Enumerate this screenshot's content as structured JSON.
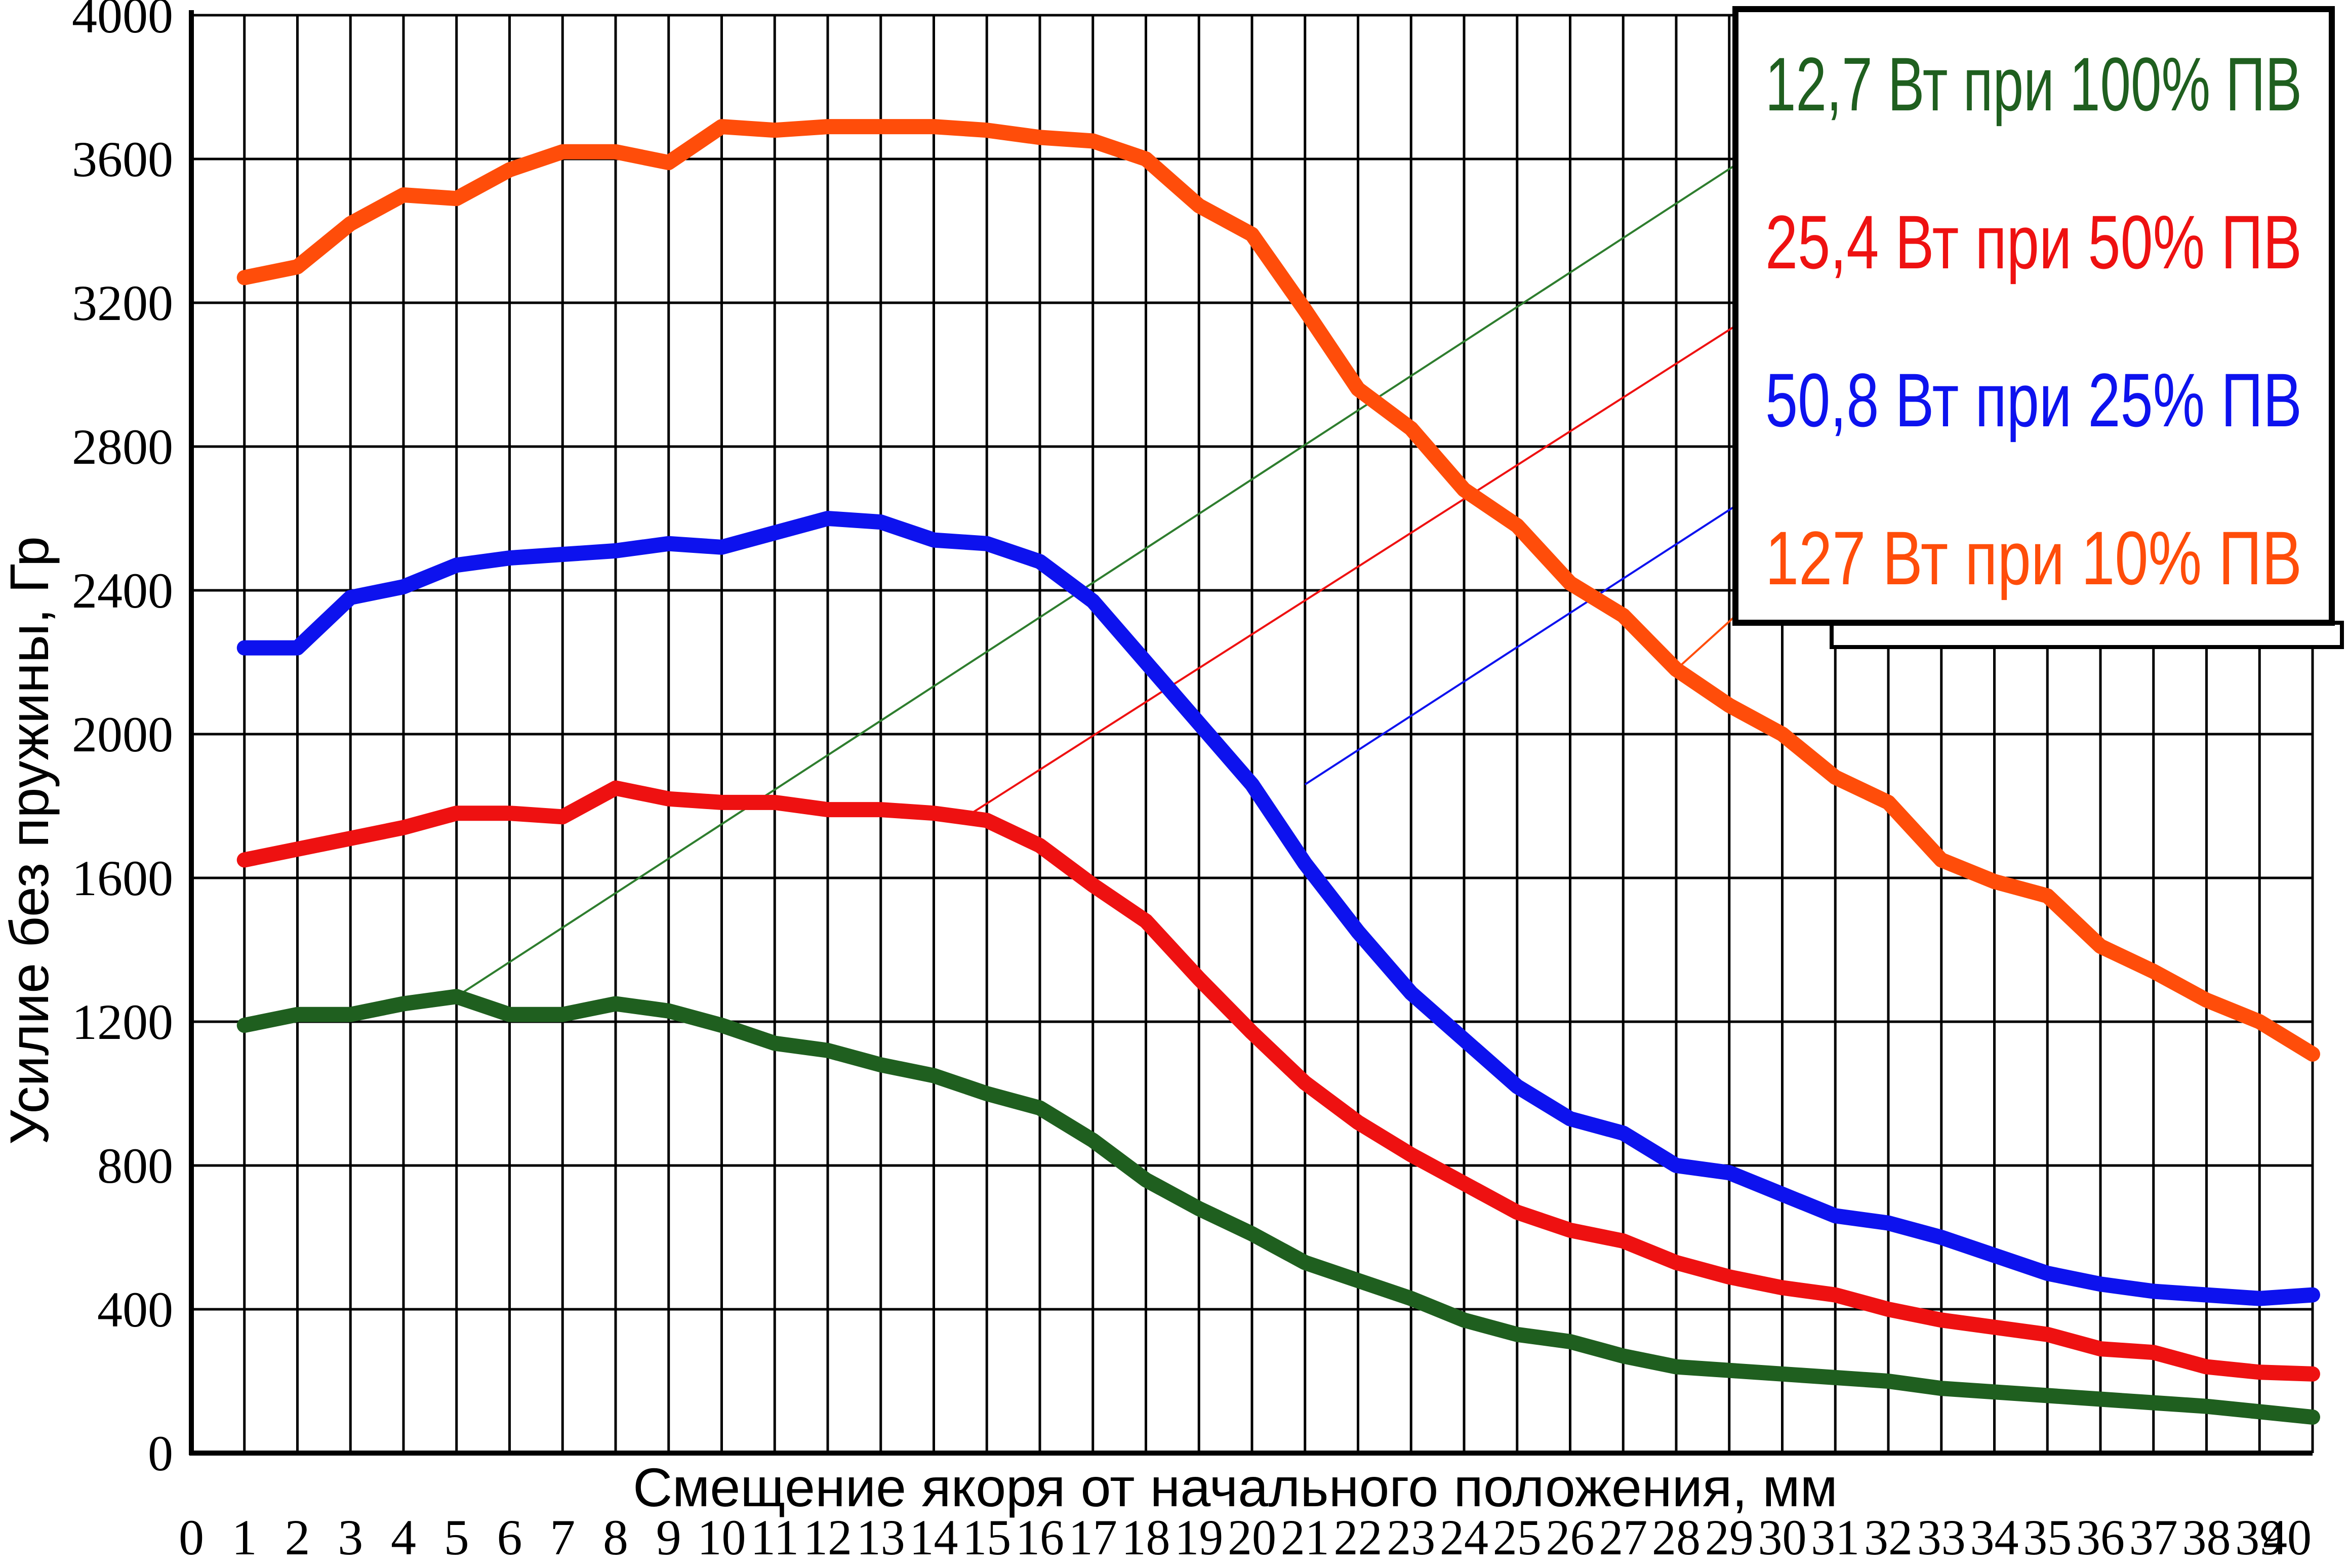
{
  "chart_data": {
    "type": "line",
    "xlabel": "Смещение якоря от начального положения, мм",
    "ylabel": "Усилие без пружины, Гр",
    "xlim": [
      0,
      40
    ],
    "ylim": [
      0,
      4000
    ],
    "xticks": [
      "0",
      "1",
      "2",
      "3",
      "4",
      "5",
      "6",
      "7",
      "8",
      "9",
      "10",
      "11",
      "12",
      "13",
      "14",
      "15",
      "16",
      "17",
      "18",
      "19",
      "20",
      "21",
      "22",
      "23",
      "24",
      "25",
      "26",
      "27",
      "28",
      "29",
      "30",
      "31",
      "32",
      "33",
      "34",
      "35",
      "36",
      "37",
      "38",
      "39",
      "40"
    ],
    "yticks": [
      "0",
      "400",
      "800",
      "1200",
      "1600",
      "2000",
      "2400",
      "2800",
      "3200",
      "3600",
      "4000"
    ],
    "grid": true,
    "legend_position": "top-right",
    "x": [
      1,
      2,
      3,
      4,
      5,
      6,
      7,
      8,
      9,
      10,
      11,
      12,
      13,
      14,
      15,
      16,
      17,
      18,
      19,
      20,
      21,
      22,
      23,
      24,
      25,
      26,
      27,
      28,
      29,
      30,
      31,
      32,
      33,
      34,
      35,
      36,
      37,
      38,
      39,
      40
    ],
    "series": [
      {
        "name": "12,7 Вт при 100% ПВ",
        "color": "#1f5f1f",
        "values": [
          1190,
          1220,
          1220,
          1250,
          1270,
          1220,
          1220,
          1250,
          1230,
          1190,
          1140,
          1120,
          1080,
          1050,
          1000,
          960,
          870,
          760,
          680,
          610,
          530,
          480,
          430,
          370,
          330,
          310,
          270,
          240,
          230,
          220,
          210,
          200,
          180,
          170,
          160,
          150,
          140,
          130,
          115,
          100
        ]
      },
      {
        "name": "25,4 Вт при 50% ПВ",
        "color": "#ee1111",
        "values": [
          1650,
          1680,
          1710,
          1740,
          1780,
          1780,
          1770,
          1850,
          1820,
          1810,
          1810,
          1790,
          1790,
          1780,
          1760,
          1690,
          1580,
          1480,
          1320,
          1170,
          1030,
          920,
          830,
          750,
          670,
          620,
          590,
          530,
          490,
          460,
          440,
          400,
          370,
          350,
          330,
          290,
          280,
          240,
          225,
          220
        ]
      },
      {
        "name": "50,8 Вт при 25% ПВ",
        "color": "#0d12ee",
        "values": [
          2240,
          2240,
          2380,
          2410,
          2470,
          2490,
          2500,
          2510,
          2530,
          2520,
          2560,
          2600,
          2590,
          2540,
          2530,
          2480,
          2370,
          2200,
          2030,
          1860,
          1640,
          1450,
          1280,
          1150,
          1020,
          930,
          890,
          800,
          780,
          720,
          660,
          640,
          600,
          550,
          500,
          470,
          450,
          440,
          430,
          440
        ]
      },
      {
        "name": "127 Вт при 10% ПВ",
        "color": "#ff4d0a",
        "values": [
          3270,
          3300,
          3420,
          3500,
          3490,
          3570,
          3620,
          3620,
          3590,
          3690,
          3680,
          3690,
          3690,
          3690,
          3680,
          3660,
          3650,
          3600,
          3470,
          3390,
          3180,
          2960,
          2850,
          2680,
          2580,
          2420,
          2330,
          2180,
          2080,
          2000,
          1880,
          1810,
          1650,
          1590,
          1550,
          1410,
          1340,
          1260,
          1200,
          1110
        ]
      }
    ]
  }
}
